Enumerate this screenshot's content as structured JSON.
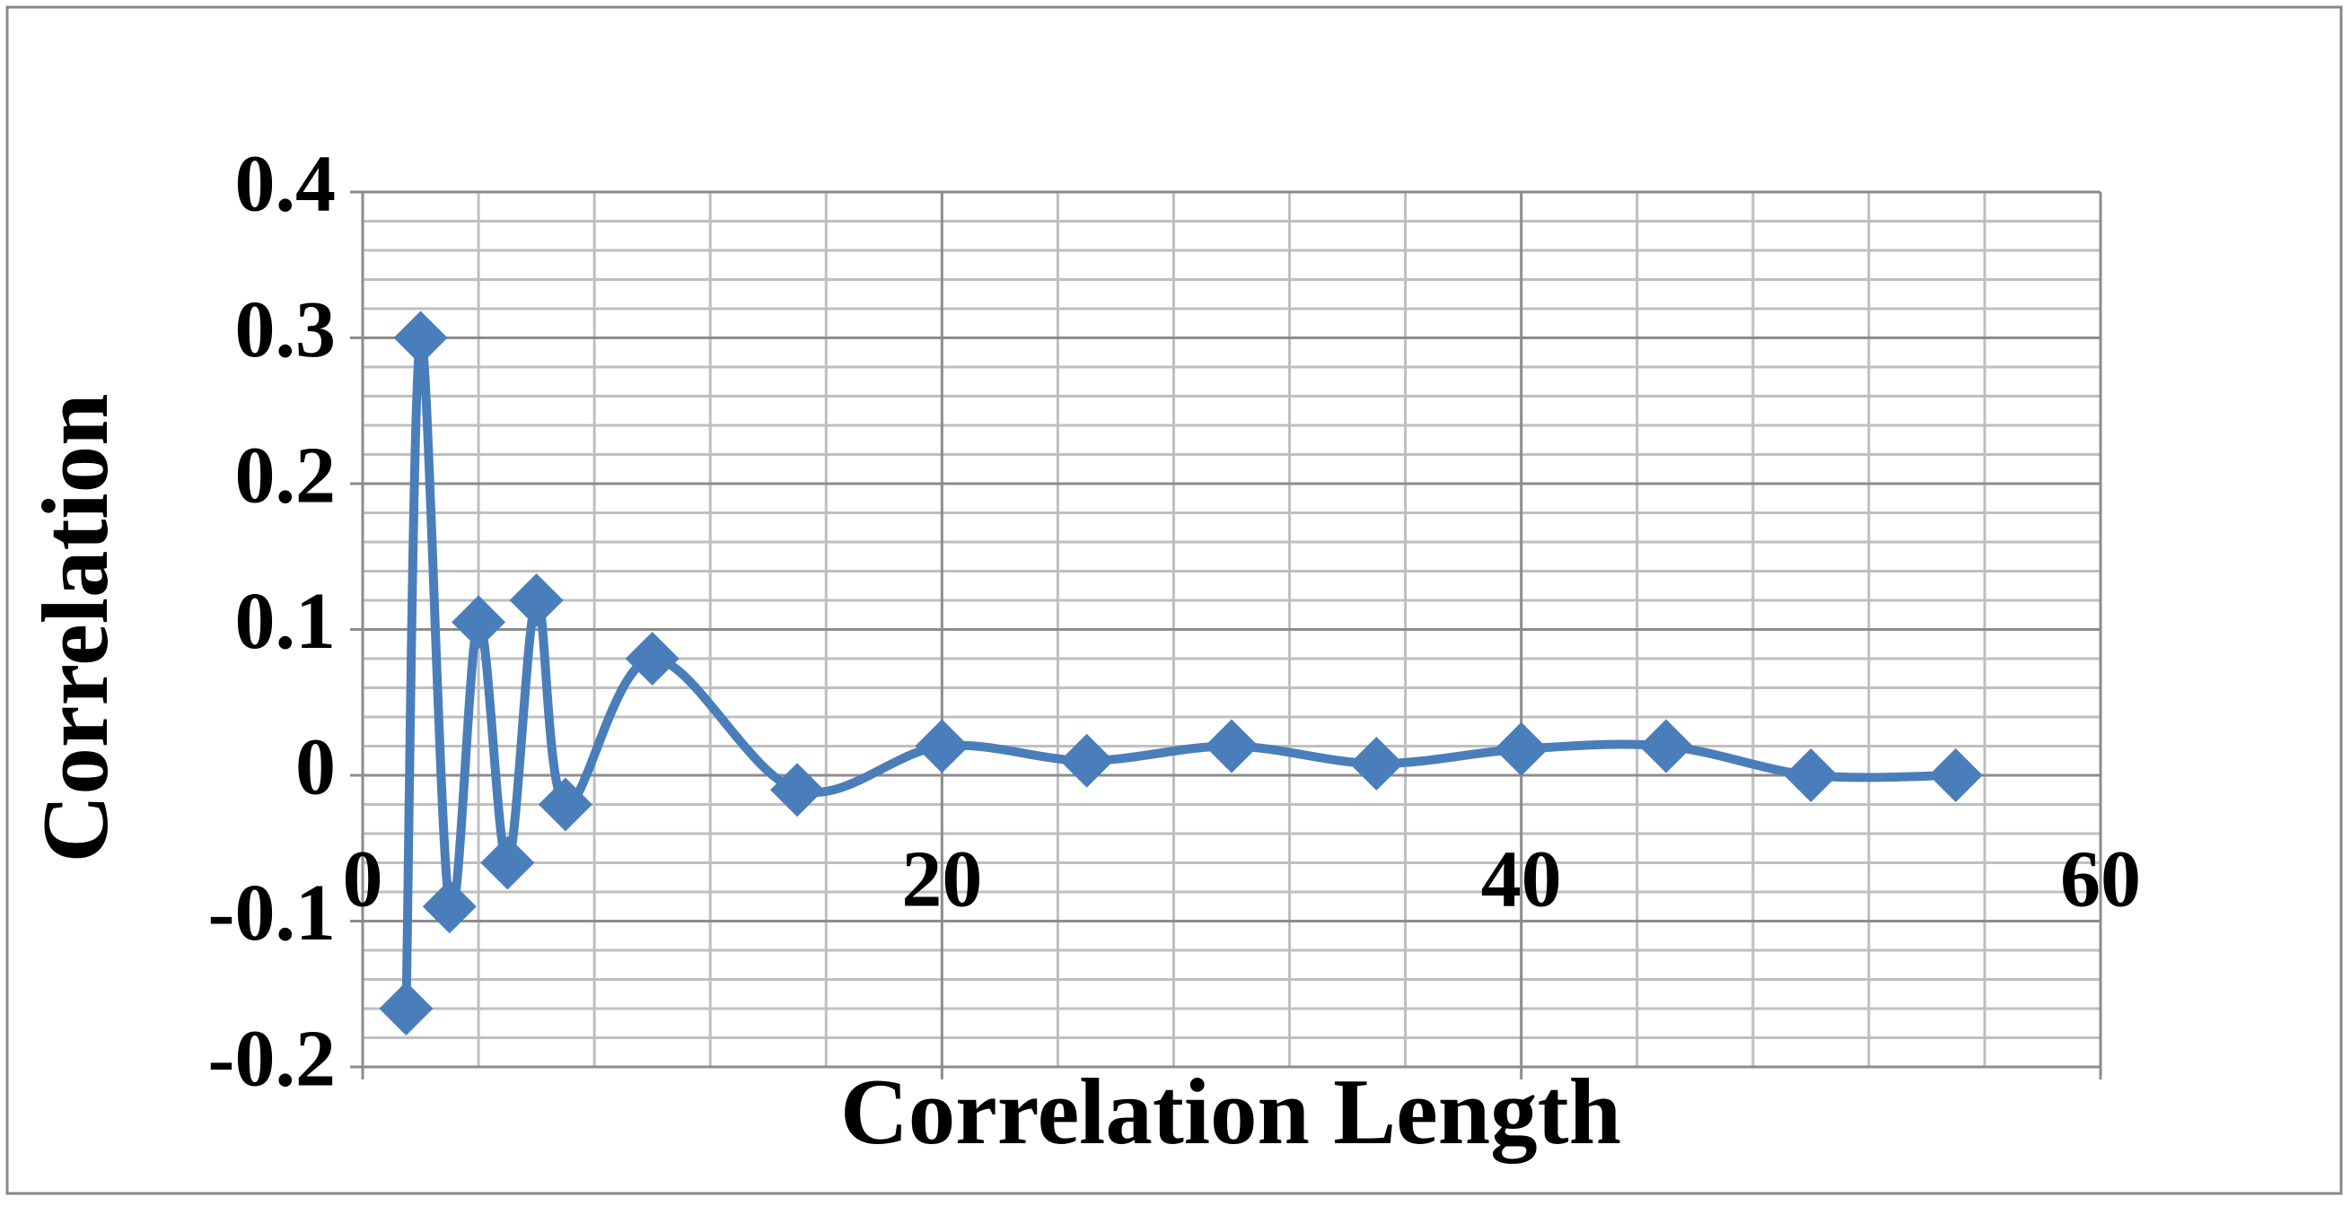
{
  "chart_data": {
    "type": "line",
    "x_label": "Correlation Length",
    "y_label": "Correlation",
    "x": [
      1.5,
      2,
      3,
      4,
      5,
      6,
      7,
      10,
      15,
      20,
      25,
      30,
      35,
      40,
      45,
      50,
      55
    ],
    "series": [
      {
        "color": "#4a7ebb",
        "values": [
          -0.16,
          0.3,
          -0.09,
          0.105,
          -0.06,
          0.12,
          -0.02,
          0.08,
          -0.01,
          0.02,
          0.01,
          0.02,
          0.008,
          0.018,
          0.02,
          0,
          0
        ]
      }
    ],
    "xlim": [
      0,
      60
    ],
    "xticks": [
      0,
      20,
      40,
      60
    ],
    "ylim": [
      -0.2,
      0.4
    ],
    "yticks": [
      -0.2,
      -0.1,
      0,
      0.1,
      0.2,
      0.3,
      0.4
    ],
    "grid": true,
    "minor_divisions": 5,
    "smooth": true,
    "marker": "diamond"
  }
}
